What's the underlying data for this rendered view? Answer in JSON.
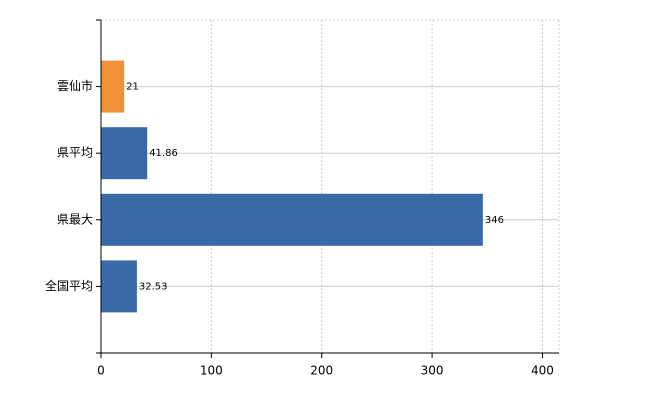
{
  "chart_data": {
    "type": "bar",
    "orientation": "horizontal",
    "categories": [
      "雲仙市",
      "県平均",
      "県最大",
      "全国平均"
    ],
    "values": [
      21,
      41.86,
      346,
      32.53
    ],
    "colors": [
      "#f0923a",
      "#3a69a8",
      "#3a69a8",
      "#3a69a8"
    ],
    "xlim": [
      0,
      415
    ],
    "xticks": [
      0,
      100,
      200,
      300,
      400
    ],
    "grid": true
  }
}
